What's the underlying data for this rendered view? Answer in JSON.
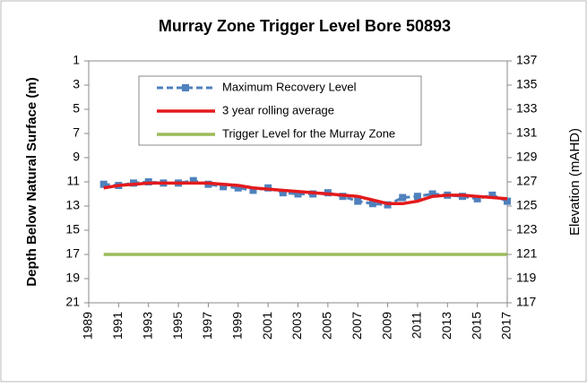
{
  "chart_data": {
    "type": "line",
    "title": "Murray Zone Trigger Level Bore 50893",
    "y_label": "Depth Below Natural Surface (m)",
    "y2_label": "Elevation (mAHD)",
    "xlim": [
      1989,
      2017
    ],
    "xticks": [
      1989,
      1991,
      1993,
      1995,
      1997,
      1999,
      2001,
      2003,
      2005,
      2007,
      2009,
      2011,
      2013,
      2015,
      2017
    ],
    "ylim": [
      1,
      21
    ],
    "y_inverted": true,
    "yticks": [
      1,
      3,
      5,
      7,
      9,
      11,
      13,
      15,
      17,
      19,
      21
    ],
    "y2lim": [
      137,
      117
    ],
    "y2ticks": [
      137,
      135,
      133,
      131,
      129,
      127,
      125,
      123,
      121,
      119,
      117
    ],
    "legend": "top-left",
    "series": [
      {
        "name": "Maximum Recovery Level",
        "color": "#4f81bd",
        "dashed": true,
        "markers": true,
        "x": [
          1990,
          1991,
          1992,
          1993,
          1994,
          1995,
          1996,
          1997,
          1998,
          1999,
          2000,
          2001,
          2002,
          2003,
          2004,
          2005,
          2006,
          2007,
          2008,
          2009,
          2010,
          2011,
          2012,
          2013,
          2014,
          2015,
          2016,
          2017
        ],
        "values": [
          11.2,
          11.3,
          11.1,
          11.0,
          11.1,
          11.1,
          10.9,
          11.2,
          11.4,
          11.5,
          11.7,
          11.5,
          11.9,
          12.0,
          12.0,
          11.9,
          12.2,
          12.6,
          12.8,
          12.9,
          12.3,
          12.2,
          12.0,
          12.1,
          12.2,
          12.4,
          12.1,
          12.6
        ]
      },
      {
        "name": "3 year rolling average",
        "color": "#e41a1c",
        "dashed": false,
        "markers": false,
        "x": [
          1990,
          1991,
          1992,
          1993,
          1994,
          1995,
          1996,
          1997,
          1998,
          1999,
          2000,
          2001,
          2002,
          2003,
          2004,
          2005,
          2006,
          2007,
          2008,
          2009,
          2010,
          2011,
          2012,
          2013,
          2014,
          2015,
          2016,
          2017
        ],
        "values": [
          11.5,
          11.3,
          11.2,
          11.1,
          11.1,
          11.1,
          11.1,
          11.1,
          11.2,
          11.3,
          11.5,
          11.6,
          11.7,
          11.8,
          11.9,
          12.0,
          12.1,
          12.2,
          12.5,
          12.8,
          12.8,
          12.6,
          12.2,
          12.1,
          12.1,
          12.2,
          12.3,
          12.4
        ]
      },
      {
        "name": "Trigger Level for the Murray Zone",
        "color": "#9bbb59",
        "dashed": false,
        "markers": false,
        "x": [
          1990,
          2017
        ],
        "values": [
          17,
          17
        ]
      }
    ]
  }
}
